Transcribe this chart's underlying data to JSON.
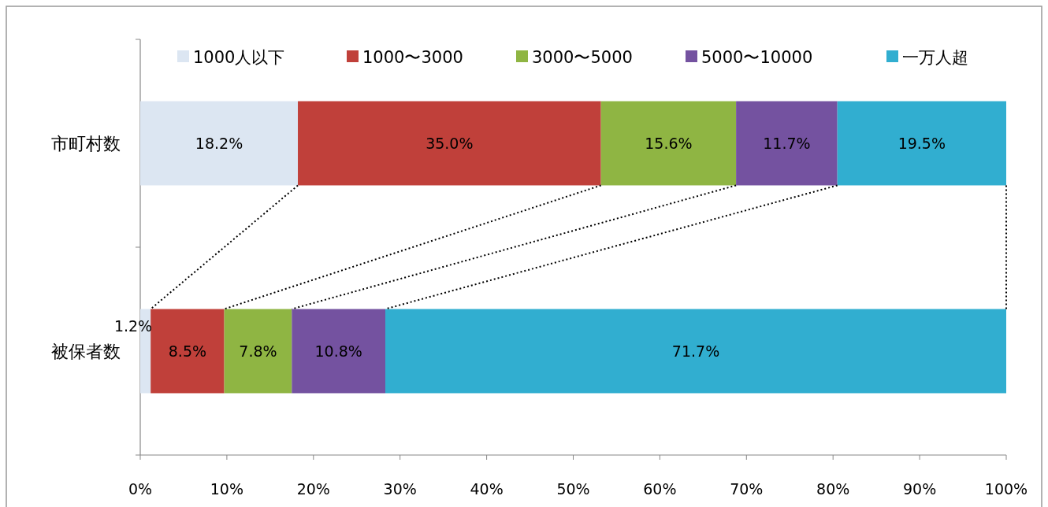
{
  "chart_data": {
    "type": "bar",
    "orientation": "horizontal",
    "stacked": true,
    "categories": [
      "市町村数",
      "被保者数"
    ],
    "series": [
      {
        "name": "1000人以下",
        "color": "#dce6f2",
        "values": [
          18.2,
          1.2
        ],
        "value_labels": [
          "18.2%",
          "1.2%"
        ]
      },
      {
        "name": "1000〜3000",
        "color": "#c0403a",
        "values": [
          35.0,
          8.5
        ],
        "value_labels": [
          "35.0%",
          "8.5%"
        ]
      },
      {
        "name": "3000〜5000",
        "color": "#8fb543",
        "values": [
          15.6,
          7.8
        ],
        "value_labels": [
          "15.6%",
          "7.8%"
        ]
      },
      {
        "name": "5000〜10000",
        "color": "#7452a0",
        "values": [
          11.7,
          10.8
        ],
        "value_labels": [
          "11.7%",
          "10.8%"
        ]
      },
      {
        "name": "一万人超",
        "color": "#31aed0",
        "values": [
          19.5,
          71.7
        ],
        "value_labels": [
          "19.5%",
          "71.7%"
        ]
      }
    ],
    "xlim": [
      0,
      100
    ],
    "xticks": [
      {
        "value": 0,
        "label": "0%"
      },
      {
        "value": 10,
        "label": "10%"
      },
      {
        "value": 20,
        "label": "20%"
      },
      {
        "value": 30,
        "label": "30%"
      },
      {
        "value": 40,
        "label": "40%"
      },
      {
        "value": 50,
        "label": "50%"
      },
      {
        "value": 60,
        "label": "60%"
      },
      {
        "value": 70,
        "label": "70%"
      },
      {
        "value": 80,
        "label": "80%"
      },
      {
        "value": 90,
        "label": "90%"
      },
      {
        "value": 100,
        "label": "100%"
      }
    ],
    "grid": false,
    "legend": "top"
  }
}
